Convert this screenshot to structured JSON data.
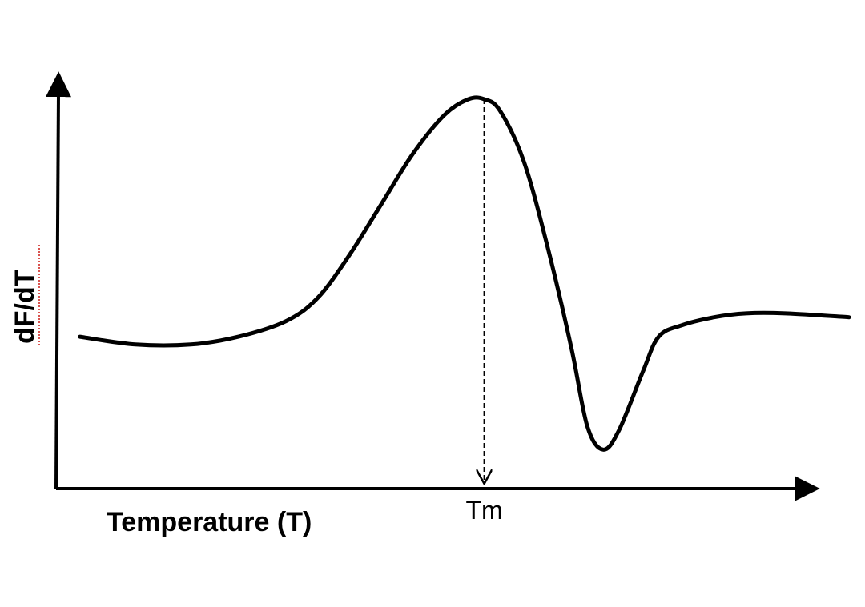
{
  "chart_data": {
    "type": "line",
    "xlabel": "Temperature (T)",
    "ylabel": "dF/dT",
    "marker": {
      "label": "Tm",
      "x": 0.54
    },
    "series": [
      {
        "x": [
          0.03,
          0.1,
          0.17,
          0.23,
          0.29,
          0.33,
          0.37,
          0.41,
          0.45,
          0.49,
          0.52,
          0.54,
          0.56,
          0.59,
          0.62,
          0.65,
          0.67,
          0.69,
          0.71,
          0.74,
          0.76,
          0.79,
          0.83,
          0.87,
          0.92,
          1.0
        ],
        "y": [
          0.39,
          0.37,
          0.37,
          0.39,
          0.43,
          0.49,
          0.6,
          0.73,
          0.86,
          0.96,
          1.0,
          1.0,
          0.97,
          0.84,
          0.62,
          0.36,
          0.16,
          0.1,
          0.15,
          0.3,
          0.39,
          0.42,
          0.44,
          0.45,
          0.45,
          0.44
        ]
      }
    ]
  }
}
